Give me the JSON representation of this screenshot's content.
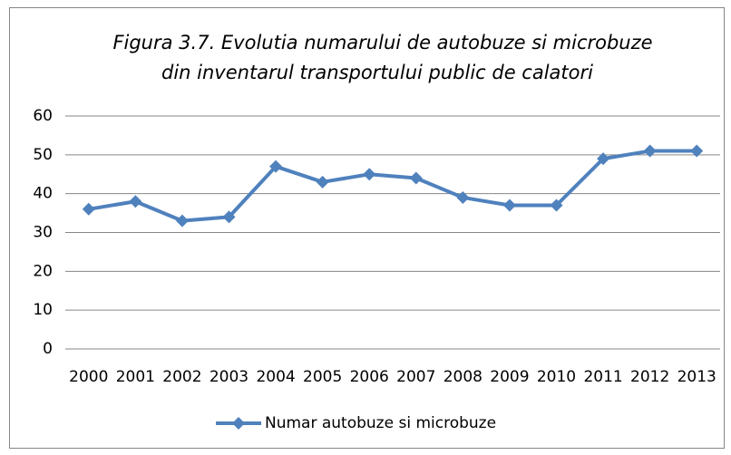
{
  "chart_data": {
    "type": "line",
    "title": [
      "Figura 3.7. Evolutia numarului de autobuze si microbuze",
      "din inventarul transportului public de calatori"
    ],
    "categories": [
      "2000",
      "2001",
      "2002",
      "2003",
      "2004",
      "2005",
      "2006",
      "2007",
      "2008",
      "2009",
      "2010",
      "2011",
      "2012",
      "2013"
    ],
    "series": [
      {
        "name": "Numar autobuze si microbuze",
        "color": "#4f81bd",
        "values": [
          36,
          38,
          33,
          34,
          47,
          43,
          45,
          44,
          39,
          37,
          37,
          49,
          51,
          51
        ]
      }
    ],
    "ylim": [
      0,
      60
    ],
    "yticks": [
      0,
      10,
      20,
      30,
      40,
      50,
      60
    ],
    "grid": true,
    "legend": "bottom"
  }
}
